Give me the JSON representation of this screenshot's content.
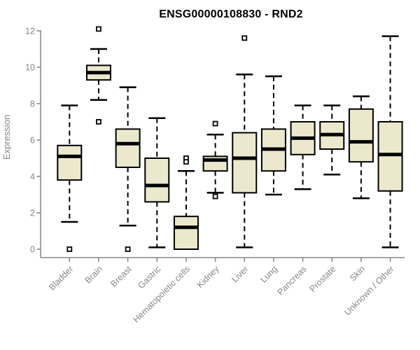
{
  "title": "ENSG00000108830 - RND2",
  "chart_data": {
    "type": "boxplot",
    "title": "ENSG00000108830 - RND2",
    "xlabel": "",
    "ylabel": "Expression",
    "ylim": [
      0,
      12
    ],
    "yticks": [
      0,
      2,
      4,
      6,
      8,
      10,
      12
    ],
    "grid": false,
    "legend": false,
    "categories": [
      "Bladder",
      "Brain",
      "Breast",
      "Gastric",
      "Hematopoietic cells",
      "Kidney",
      "Liver",
      "Lung",
      "Pancreas",
      "Prostate",
      "Skin",
      "Unknown / Other"
    ],
    "series": [
      {
        "category": "Bladder",
        "low": 1.5,
        "q1": 3.8,
        "median": 5.1,
        "q3": 5.7,
        "high": 7.9,
        "outliers": [
          0
        ]
      },
      {
        "category": "Brain",
        "low": 8.2,
        "q1": 9.3,
        "median": 9.7,
        "q3": 10.1,
        "high": 11.0,
        "outliers": [
          12.1,
          7.0
        ]
      },
      {
        "category": "Breast",
        "low": 1.3,
        "q1": 4.5,
        "median": 5.8,
        "q3": 6.6,
        "high": 8.9,
        "outliers": [
          0
        ]
      },
      {
        "category": "Gastric",
        "low": 0.1,
        "q1": 2.6,
        "median": 3.5,
        "q3": 5.0,
        "high": 7.2,
        "outliers": []
      },
      {
        "category": "Hematopoietic cells",
        "low": 0,
        "q1": 0,
        "median": 1.2,
        "q3": 1.8,
        "high": 4.3,
        "outliers": [
          5.0,
          4.8
        ]
      },
      {
        "category": "Kidney",
        "low": 3.1,
        "q1": 4.3,
        "median": 4.9,
        "q3": 5.1,
        "high": 6.3,
        "outliers": [
          6.9,
          2.9
        ]
      },
      {
        "category": "Liver",
        "low": 0.1,
        "q1": 3.1,
        "median": 5.0,
        "q3": 6.4,
        "high": 9.6,
        "outliers": [
          11.6
        ]
      },
      {
        "category": "Lung",
        "low": 3.0,
        "q1": 4.3,
        "median": 5.5,
        "q3": 6.6,
        "high": 9.5,
        "outliers": []
      },
      {
        "category": "Pancreas",
        "low": 3.3,
        "q1": 5.2,
        "median": 6.1,
        "q3": 7.0,
        "high": 7.9,
        "outliers": []
      },
      {
        "category": "Prostate",
        "low": 4.1,
        "q1": 5.5,
        "median": 6.3,
        "q3": 7.0,
        "high": 7.9,
        "outliers": []
      },
      {
        "category": "Skin",
        "low": 2.8,
        "q1": 4.8,
        "median": 5.9,
        "q3": 7.7,
        "high": 8.4,
        "outliers": []
      },
      {
        "category": "Unknown / Other",
        "low": 0.1,
        "q1": 3.2,
        "median": 5.2,
        "q3": 7.0,
        "high": 11.7,
        "outliers": []
      }
    ],
    "colors": {
      "box_fill": "#ece8cd",
      "box_stroke": "#000000",
      "median": "#000000",
      "whisker": "#000000",
      "outlier": "#000000",
      "axis": "#868686",
      "tick_label": "#868686",
      "title": "#000000",
      "background": "#ffffff"
    }
  }
}
